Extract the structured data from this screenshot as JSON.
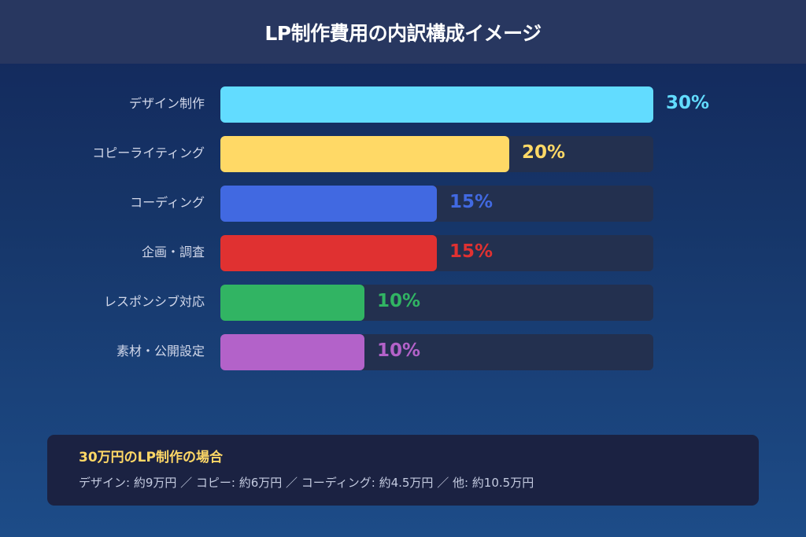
{
  "header": {
    "title": "LP制作費用の内訳構成イメージ"
  },
  "colors": {
    "background_top": "#13275a",
    "background_bottom": "#1d4c88",
    "header_bg": "#283760",
    "track_bg": "#23304f",
    "summary_bg": "#1b2242",
    "summary_title": "#ffd866"
  },
  "chart_data": {
    "type": "bar",
    "orientation": "horizontal",
    "title": "LP制作費用の内訳構成イメージ",
    "xlabel": "",
    "ylabel": "",
    "xlim": [
      0,
      30
    ],
    "grid": false,
    "legend": "none",
    "categories": [
      "デザイン制作",
      "コピーライティング",
      "コーディング",
      "企画・調査",
      "レスポンシブ対応",
      "素材・公開設定"
    ],
    "values": [
      30,
      20,
      15,
      15,
      10,
      10
    ],
    "value_labels": [
      "30%",
      "20%",
      "15%",
      "15%",
      "10%",
      "10%"
    ],
    "bar_colors": [
      "#62dcff",
      "#ffd966",
      "#4169e1",
      "#e03131",
      "#31b463",
      "#b362c9"
    ],
    "unit": "%"
  },
  "summary": {
    "title": "30万円のLP制作の場合",
    "detail": "デザイン: 約9万円 ／ コピー: 約6万円 ／ コーディング: 約4.5万円 ／ 他: 約10.5万円"
  }
}
